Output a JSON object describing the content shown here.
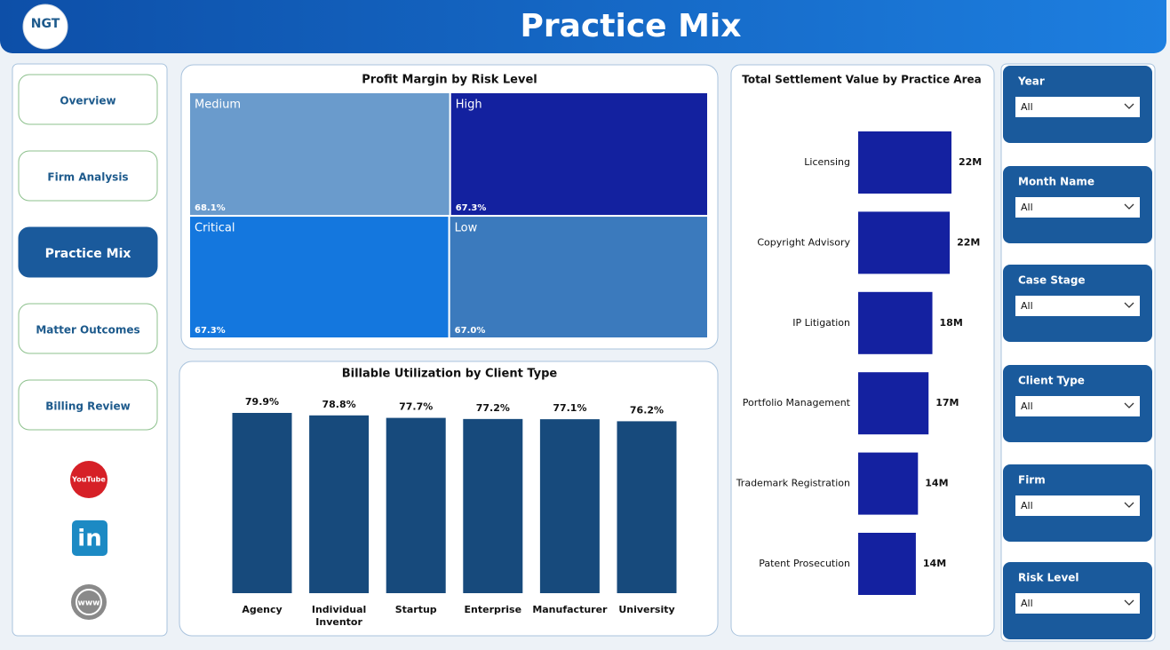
{
  "header": {
    "logo": "NGT",
    "title": "Practice Mix"
  },
  "nav": [
    "Overview",
    "Firm Analysis",
    "Practice Mix",
    "Matter Outcomes",
    "Billing Review"
  ],
  "social": [
    "YouTube",
    "in",
    "www"
  ],
  "chart_data": [
    {
      "type": "treemap",
      "title": "Profit Margin by Risk Level",
      "categories": [
        "Medium",
        "High",
        "Critical",
        "Low"
      ],
      "values": [
        68.1,
        67.3,
        67.3,
        67.0
      ],
      "value_labels": [
        "68.1%",
        "67.3%",
        "67.3%",
        "67.0%"
      ],
      "colors": [
        "#6a9bcc",
        "#13219f",
        "#1477de",
        "#3b7abd"
      ]
    },
    {
      "type": "bar",
      "title": "Billable Utilization by Client Type",
      "categories": [
        "Agency",
        "Individual Inventor",
        "Startup",
        "Enterprise",
        "Manufacturer",
        "University"
      ],
      "values": [
        79.9,
        78.8,
        77.7,
        77.2,
        77.1,
        76.2
      ],
      "value_labels": [
        "79.9%",
        "78.8%",
        "77.7%",
        "77.2%",
        "77.1%",
        "76.2%"
      ],
      "color": "#174a7c"
    },
    {
      "type": "hbar",
      "title": "Total Settlement Value by Practice Area",
      "categories": [
        "Licensing",
        "Copyright Advisory",
        "IP Litigation",
        "Portfolio Management",
        "Trademark Registration",
        "Patent Prosecution"
      ],
      "values": [
        22000000,
        21600000,
        17500000,
        16600000,
        14100000,
        13600000
      ],
      "value_labels": [
        "22M",
        "22M",
        "18M",
        "17M",
        "14M",
        "14M"
      ],
      "color": "#1421a0"
    }
  ],
  "filters": [
    {
      "label": "Year",
      "value": "All"
    },
    {
      "label": "Month Name",
      "value": "All"
    },
    {
      "label": "Case Stage",
      "value": "All"
    },
    {
      "label": "Client Type",
      "value": "All"
    },
    {
      "label": "Firm",
      "value": "All"
    },
    {
      "label": "Risk Level",
      "value": "All"
    }
  ]
}
